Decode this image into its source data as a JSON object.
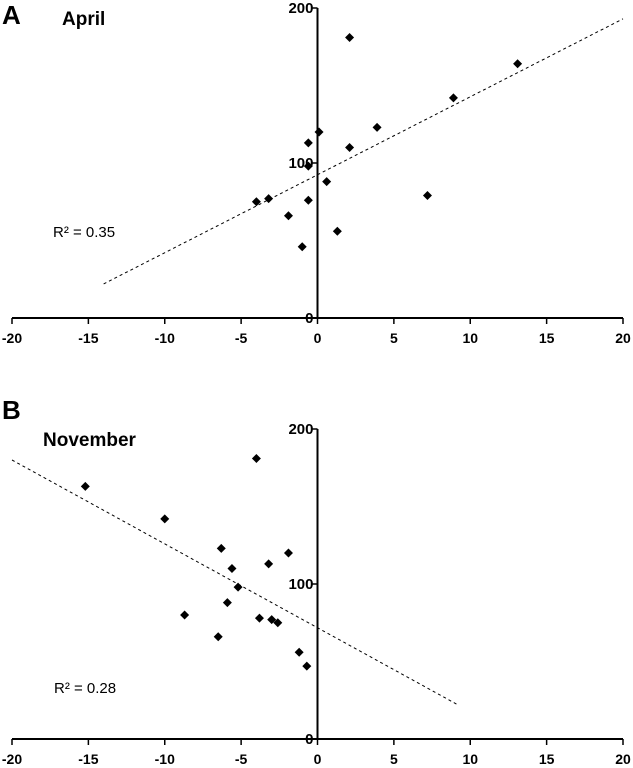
{
  "chart_data": [
    {
      "type": "scatter",
      "panel_label": "A",
      "title": "April",
      "annotation": "R² = 0.35",
      "xlim": [
        -20,
        20
      ],
      "ylim": [
        0,
        200
      ],
      "xticks": [
        "-20",
        "-15",
        "-10",
        "-5",
        "0",
        "5",
        "10",
        "15",
        "20"
      ],
      "yticks": [
        "0",
        "100",
        "200"
      ],
      "grid": false,
      "trendline": {
        "style": "dashed",
        "x": [
          -14,
          20
        ],
        "y": [
          22,
          193
        ]
      },
      "series": [
        {
          "x": [
            -4.0,
            -3.2,
            -1.9,
            -1.0,
            -0.6,
            -0.6,
            -0.6,
            0.1,
            0.6,
            1.3,
            2.1,
            2.1,
            3.9,
            7.2,
            8.9,
            13.1
          ],
          "y": [
            75,
            77,
            66,
            46,
            76,
            98,
            113,
            120,
            88,
            56,
            110,
            181,
            123,
            79,
            142,
            164
          ]
        }
      ]
    },
    {
      "type": "scatter",
      "panel_label": "B",
      "title": "November",
      "annotation": "R² = 0.28",
      "xlim": [
        -20,
        20
      ],
      "ylim": [
        0,
        200
      ],
      "xticks": [
        "-20",
        "-15",
        "-10",
        "-5",
        "0",
        "5",
        "10",
        "15",
        "20"
      ],
      "yticks": [
        "0",
        "100",
        "200"
      ],
      "grid": false,
      "trendline": {
        "style": "dashed",
        "x": [
          -20,
          9.2
        ],
        "y": [
          180,
          22
        ]
      },
      "series": [
        {
          "x": [
            -15.2,
            -10.0,
            -8.7,
            -6.5,
            -6.3,
            -5.9,
            -5.6,
            -5.2,
            -4.0,
            -3.8,
            -3.2,
            -3.0,
            -2.6,
            -1.9,
            -1.2,
            -0.7
          ],
          "y": [
            163,
            142,
            80,
            66,
            123,
            88,
            110,
            98,
            181,
            78,
            113,
            77,
            75,
            120,
            56,
            47
          ]
        }
      ]
    }
  ]
}
